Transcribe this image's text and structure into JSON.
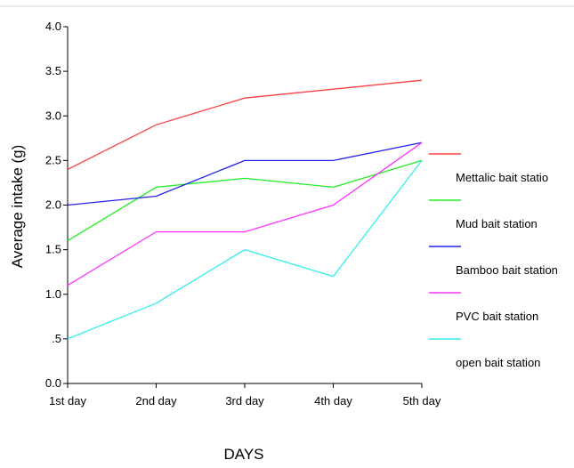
{
  "chart_data": {
    "type": "line",
    "xlabel": "DAYS",
    "ylabel": "Average intake (g)",
    "categories": [
      "1st day",
      "2nd day",
      "3rd day",
      "4th day",
      "5th day"
    ],
    "ylim": [
      0,
      4
    ],
    "yticks": [
      {
        "value": 0.0,
        "label": "0.0"
      },
      {
        "value": 0.5,
        "label": ".5"
      },
      {
        "value": 1.0,
        "label": "1.0"
      },
      {
        "value": 1.5,
        "label": "1.5"
      },
      {
        "value": 2.0,
        "label": "2.0"
      },
      {
        "value": 2.5,
        "label": "2.5"
      },
      {
        "value": 3.0,
        "label": "3.0"
      },
      {
        "value": 3.5,
        "label": "3.5"
      },
      {
        "value": 4.0,
        "label": "4.0"
      }
    ],
    "grid": false,
    "legend_position": "right",
    "series": [
      {
        "name": "Mettalic bait statio",
        "color": "#ff4040",
        "values": [
          2.4,
          2.9,
          3.2,
          3.3,
          3.4
        ]
      },
      {
        "name": "Mud bait station",
        "color": "#22ee22",
        "values": [
          1.6,
          2.2,
          2.3,
          2.2,
          2.5
        ]
      },
      {
        "name": "Bamboo bait station",
        "color": "#2222ee",
        "values": [
          2.0,
          2.1,
          2.5,
          2.5,
          2.7
        ]
      },
      {
        "name": "PVC bait station",
        "color": "#ff33ff",
        "values": [
          1.1,
          1.7,
          1.7,
          2.0,
          2.7
        ]
      },
      {
        "name": "open bait station",
        "color": "#33eeee",
        "values": [
          0.5,
          0.9,
          1.5,
          1.2,
          2.5
        ]
      }
    ]
  }
}
